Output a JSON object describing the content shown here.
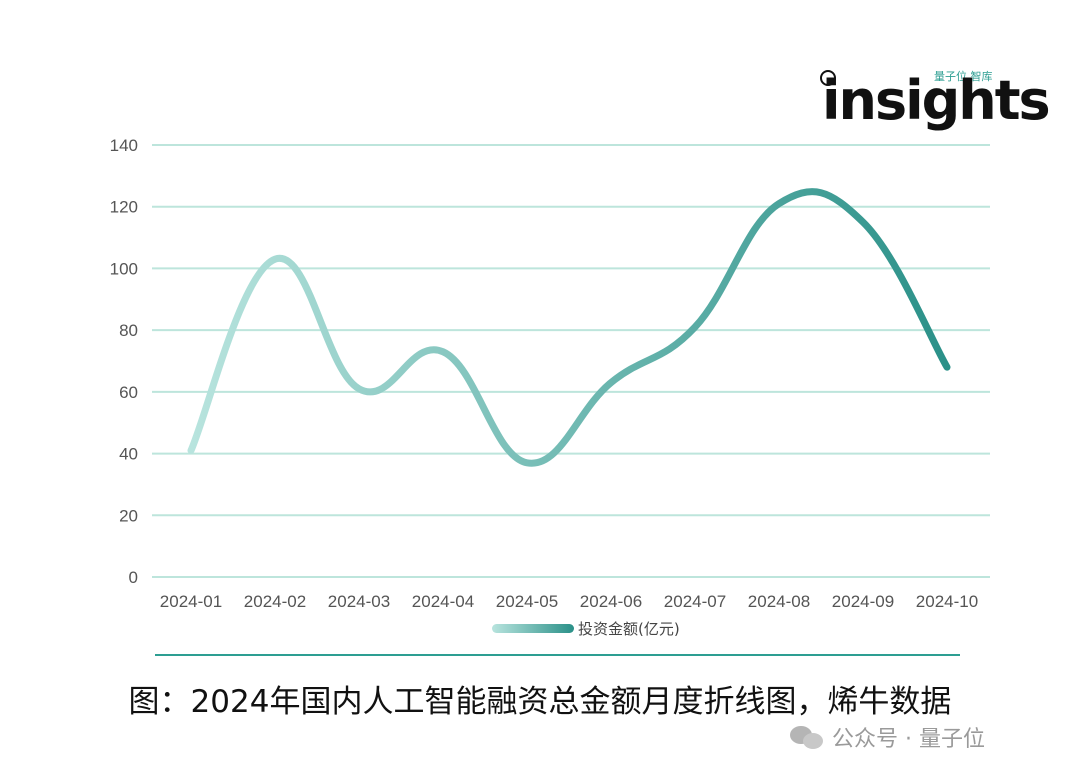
{
  "brand": {
    "logo_word": "insights",
    "logo_small": "量子位 智库"
  },
  "chart_data": {
    "type": "line",
    "categories": [
      "2024-01",
      "2024-02",
      "2024-03",
      "2024-04",
      "2024-05",
      "2024-06",
      "2024-07",
      "2024-08",
      "2024-09",
      "2024-10"
    ],
    "series": [
      {
        "name": "投资金额(亿元)",
        "values": [
          41,
          103,
          61,
          73,
          37,
          63,
          81,
          121,
          115,
          68
        ]
      }
    ],
    "yticks": [
      0,
      20,
      40,
      60,
      80,
      100,
      120,
      140
    ],
    "ylim": [
      0,
      140
    ],
    "grid": true,
    "legend_position": "bottom-center",
    "colors": {
      "start": "#b8e4de",
      "end": "#2a9088",
      "grid": "#bde5dc"
    }
  },
  "caption": "图：2024年国内人工智能融资总金额月度折线图，烯牛数据",
  "watermark": {
    "text": "公众号 · 量子位",
    "icon": "wechat-icon"
  }
}
